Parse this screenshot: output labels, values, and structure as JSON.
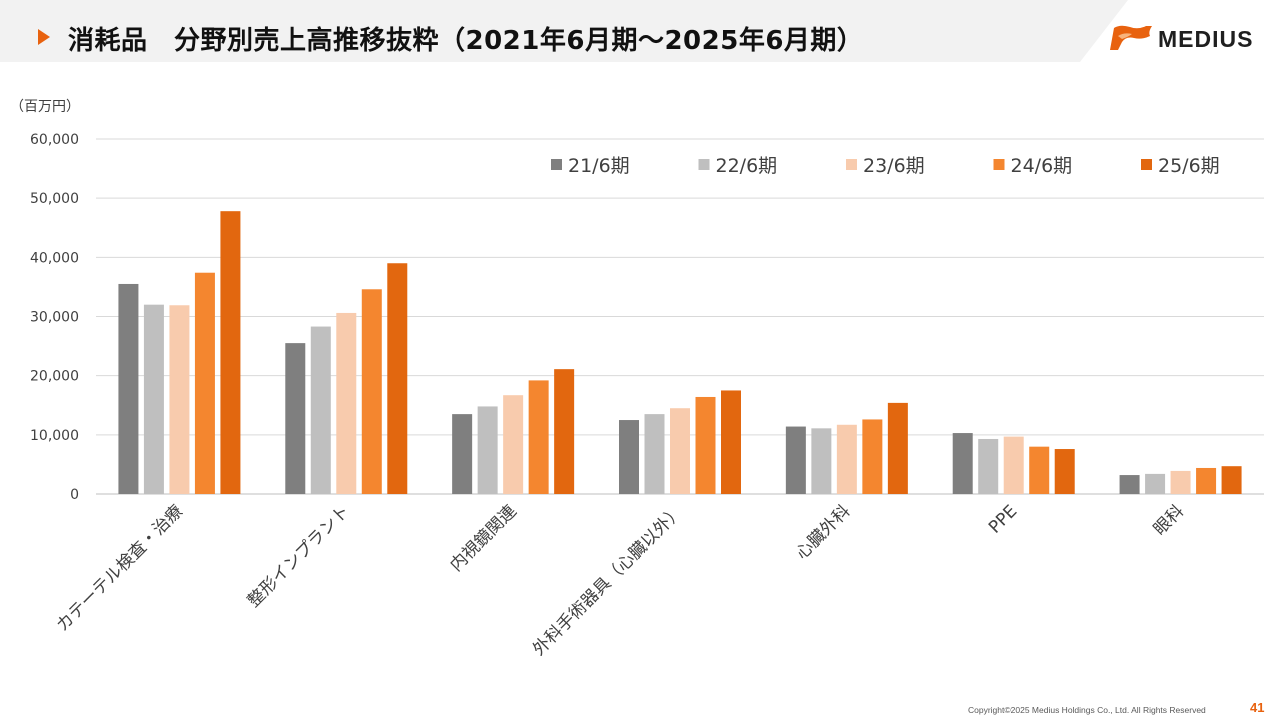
{
  "header": {
    "title": "消耗品　分野別売上高推移抜粋（2021年6月期～2025年6月期）",
    "accent_color": "#e8620f",
    "icon": "play-triangle-icon"
  },
  "logo": {
    "text": "MEDIUS",
    "mark": "flame-flag-logo"
  },
  "chart_data": {
    "type": "bar",
    "unit": "（百万円）",
    "ylim": [
      0,
      60000
    ],
    "y_ticks": [
      0,
      10000,
      20000,
      30000,
      40000,
      50000,
      60000
    ],
    "y_tick_labels": [
      "0",
      "10,000",
      "20,000",
      "30,000",
      "40,000",
      "50,000",
      "60,000"
    ],
    "grid": true,
    "legend_position": "top-right",
    "categories": [
      "カテーテル検査・治療",
      "整形インプラント",
      "内視鏡関連",
      "外科手術器具（心臓以外）",
      "心臓外科",
      "PPE",
      "眼科"
    ],
    "series": [
      {
        "name": "21/6期",
        "color": "#7f7f7f",
        "values": [
          35500,
          25500,
          13500,
          12500,
          11400,
          10300,
          3200
        ]
      },
      {
        "name": "22/6期",
        "color": "#bfbfbf",
        "values": [
          32000,
          28300,
          14800,
          13500,
          11100,
          9300,
          3400
        ]
      },
      {
        "name": "23/6期",
        "color": "#f8cbad",
        "values": [
          31900,
          30600,
          16700,
          14500,
          11700,
          9700,
          3900
        ]
      },
      {
        "name": "24/6期",
        "color": "#f4862f",
        "values": [
          37400,
          34600,
          19200,
          16400,
          12600,
          8000,
          4400
        ]
      },
      {
        "name": "25/6期",
        "color": "#e2670f",
        "values": [
          47800,
          39000,
          21100,
          17500,
          15400,
          7600,
          4700
        ]
      }
    ]
  },
  "footer": {
    "copyright": "Copyright©2025 Medius Holdings Co., Ltd. All Rights Reserved",
    "page_number": "41"
  }
}
